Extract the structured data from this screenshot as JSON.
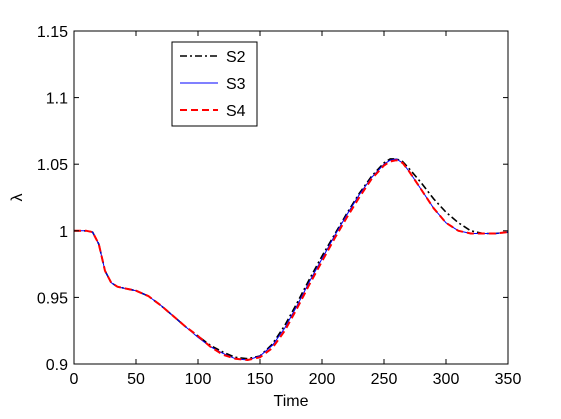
{
  "chart_data": {
    "type": "line",
    "title": "",
    "xlabel": "Time",
    "ylabel": "λ",
    "xlim": [
      0,
      350
    ],
    "ylim": [
      0.9,
      1.15
    ],
    "xticks": [
      0,
      50,
      100,
      150,
      200,
      250,
      300,
      350
    ],
    "xtick_labels": [
      "0",
      "50",
      "100",
      "150",
      "200",
      "250",
      "300",
      "350"
    ],
    "yticks": [
      0.9,
      0.95,
      1.0,
      1.05,
      1.1,
      1.15
    ],
    "ytick_labels": [
      "0.9",
      "0.95",
      "1",
      "1.05",
      "1.1",
      "1.15"
    ],
    "grid": false,
    "legend_position": "top-left",
    "series": [
      {
        "name": "S2",
        "color": "#000000",
        "style": "dash-dot",
        "x": [
          0,
          10,
          15,
          20,
          25,
          30,
          35,
          40,
          50,
          60,
          70,
          80,
          90,
          100,
          110,
          120,
          130,
          140,
          150,
          160,
          170,
          180,
          190,
          200,
          210,
          220,
          230,
          240,
          250,
          255,
          260,
          265,
          270,
          280,
          290,
          300,
          310,
          320,
          330,
          340,
          350
        ],
        "y": [
          1.0,
          1.0,
          0.999,
          0.99,
          0.97,
          0.961,
          0.958,
          0.957,
          0.955,
          0.951,
          0.944,
          0.936,
          0.928,
          0.921,
          0.914,
          0.909,
          0.905,
          0.904,
          0.906,
          0.915,
          0.929,
          0.946,
          0.964,
          0.981,
          0.997,
          1.013,
          1.028,
          1.041,
          1.051,
          1.054,
          1.054,
          1.052,
          1.047,
          1.036,
          1.024,
          1.014,
          1.006,
          1.0,
          0.998,
          0.998,
          0.999
        ]
      },
      {
        "name": "S3",
        "color": "#0000ff",
        "style": "solid",
        "x": [
          0,
          10,
          15,
          20,
          25,
          30,
          35,
          40,
          50,
          60,
          70,
          80,
          90,
          100,
          110,
          120,
          130,
          140,
          150,
          160,
          170,
          180,
          190,
          200,
          210,
          220,
          230,
          240,
          250,
          255,
          260,
          265,
          270,
          280,
          290,
          300,
          310,
          320,
          330,
          340,
          350
        ],
        "y": [
          1.0,
          1.0,
          0.999,
          0.99,
          0.97,
          0.961,
          0.958,
          0.957,
          0.955,
          0.951,
          0.944,
          0.936,
          0.928,
          0.92,
          0.913,
          0.908,
          0.904,
          0.903,
          0.906,
          0.914,
          0.927,
          0.944,
          0.962,
          0.979,
          0.996,
          1.012,
          1.027,
          1.04,
          1.05,
          1.053,
          1.054,
          1.051,
          1.045,
          1.031,
          1.017,
          1.006,
          1.0,
          0.998,
          0.998,
          0.998,
          0.999
        ]
      },
      {
        "name": "S4",
        "color": "#ff0000",
        "style": "dashed",
        "x": [
          0,
          10,
          15,
          20,
          25,
          30,
          35,
          40,
          50,
          60,
          70,
          80,
          90,
          100,
          110,
          120,
          130,
          140,
          150,
          160,
          170,
          180,
          190,
          200,
          210,
          220,
          230,
          240,
          250,
          255,
          260,
          265,
          270,
          280,
          290,
          300,
          310,
          320,
          330,
          340,
          350
        ],
        "y": [
          1.0,
          1.0,
          0.999,
          0.99,
          0.97,
          0.961,
          0.958,
          0.957,
          0.955,
          0.951,
          0.944,
          0.936,
          0.928,
          0.921,
          0.913,
          0.907,
          0.904,
          0.903,
          0.905,
          0.912,
          0.925,
          0.942,
          0.96,
          0.977,
          0.994,
          1.01,
          1.025,
          1.039,
          1.049,
          1.052,
          1.053,
          1.051,
          1.045,
          1.031,
          1.017,
          1.006,
          1.0,
          0.998,
          0.998,
          0.998,
          0.999
        ]
      }
    ]
  }
}
